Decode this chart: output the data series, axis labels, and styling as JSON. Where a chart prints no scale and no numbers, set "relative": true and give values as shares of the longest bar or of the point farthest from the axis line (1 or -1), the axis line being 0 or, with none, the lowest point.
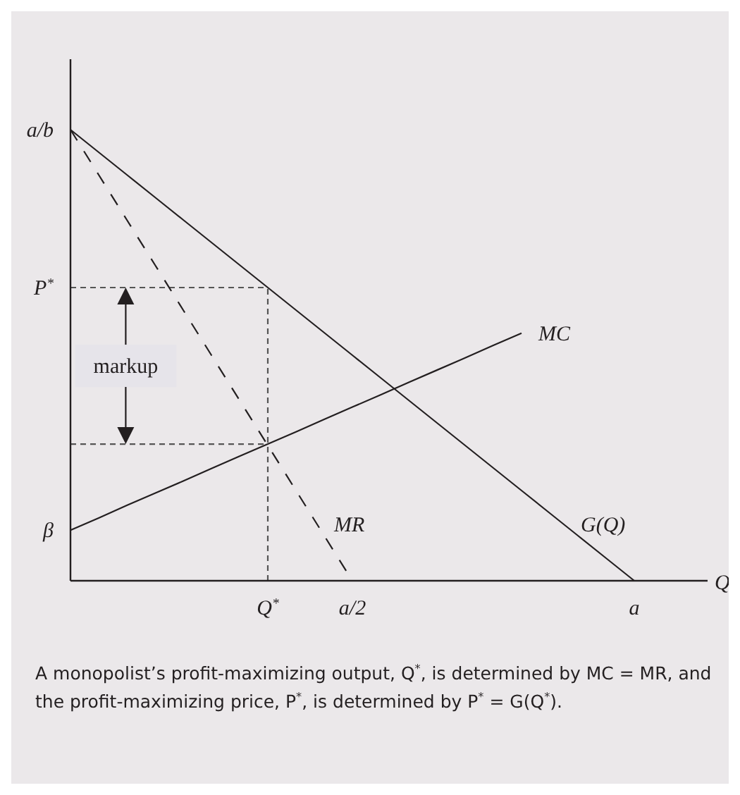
{
  "chart_data": {
    "type": "line",
    "relative": true,
    "xlabel": "Q",
    "categories": [
      null,
      null,
      null,
      null,
      null,
      null,
      null,
      "Q$^{*}$",
      null,
      null,
      "a/2",
      null,
      null,
      null,
      null,
      null,
      null,
      null,
      null,
      null,
      "a",
      null,
      null
    ],
    "grid": false,
    "series": [
      {
        "name": "G(Q)",
        "color": "#231f20",
        "line_style": "solid",
        "values": [
          1,
          0.95,
          0.9,
          0.85,
          0.8,
          0.75,
          0.7,
          0.65,
          0.6,
          0.55,
          0.5,
          0.45,
          0.4,
          0.35,
          0.3,
          0.25,
          0.2,
          0.15,
          0.1,
          0.05,
          0,
          null,
          null
        ]
      },
      {
        "name": "MR",
        "color": "#231f20",
        "line_style": "dashed",
        "values": [
          1,
          0.9,
          0.8,
          0.7,
          0.6,
          0.5,
          0.4,
          0.3,
          0.2,
          0.1,
          0,
          null,
          null,
          null,
          null,
          null,
          null,
          null,
          null,
          null,
          null,
          null,
          null
        ]
      },
      {
        "name": "MC",
        "color": "#231f20",
        "line_style": "solid",
        "values": [
          0.112,
          0.139,
          0.167,
          0.194,
          0.221,
          0.249,
          0.276,
          0.303,
          0.33,
          0.358,
          0.385,
          0.412,
          0.44,
          0.467,
          0.494,
          0.522,
          0.549,
          null,
          null,
          null,
          null,
          null,
          null
        ]
      }
    ],
    "ref_lines": [
      {
        "axis": "y",
        "value": 0.65,
        "label": "P$^{*}$",
        "color": "#555555",
        "line_style": "dotted"
      },
      {
        "axis": "y",
        "value": 0.303,
        "color": "#555555",
        "line_style": "dotted"
      },
      {
        "axis": "x",
        "value": "Q$^{*}$",
        "color": "#555555",
        "line_style": "dotted"
      }
    ],
    "annotations": [
      "a/b",
      "β",
      "markup",
      "A monopolist’s profit-maximizing output, Q$^{*}$, is determined by MC = MR, and the profit-maximizing price, P$^{*}$, is determined by P$^{*}$ = G(Q$^{*}$)."
    ]
  }
}
